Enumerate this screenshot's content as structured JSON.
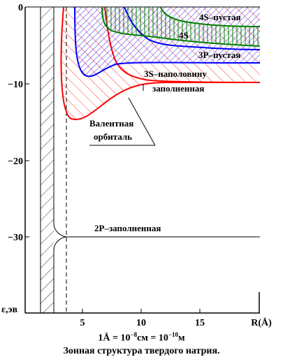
{
  "diagram": {
    "y_ticks": [
      "0",
      "−10",
      "−20",
      "−30"
    ],
    "x_ticks": [
      "5",
      "10",
      "15"
    ],
    "x_axis_label": "R(Å)",
    "y_axis_label": "ε,эв",
    "labels": {
      "s4_empty": "4S–пустая",
      "s4": "4S",
      "p3_empty": "3P–пустая",
      "s3_half_line1": "3S–наполовину",
      "s3_half_line2": "заполненная",
      "valence_line1": "Валентная",
      "valence_line2": "орбиталь",
      "p2_filled": "2P–заполненная"
    },
    "colors": {
      "s4": "#008000",
      "p3": "#0000ff",
      "s3": "#ff0000",
      "core": "#000000"
    }
  },
  "caption": {
    "units_a": "1Å = 10",
    "units_exp1": "−8",
    "units_b": "см = 10",
    "units_exp2": "−10",
    "units_c": "м",
    "title": "Зонная структура  твердого натрия."
  }
}
